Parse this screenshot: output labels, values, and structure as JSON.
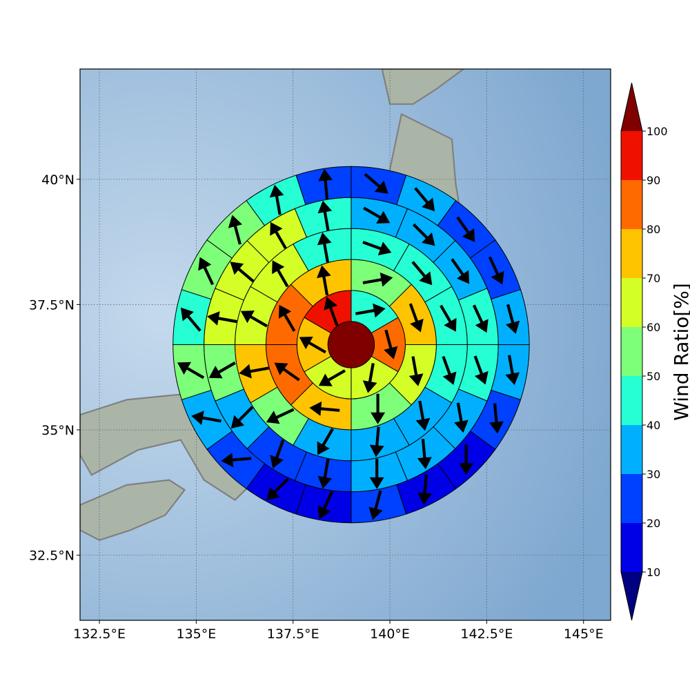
{
  "chart_data": {
    "type": "heatmap",
    "subtype": "polar-sector-map",
    "projection": "cylindrical",
    "lon_range": [
      132.0,
      145.7
    ],
    "lat_range": [
      31.2,
      42.2
    ],
    "xticks": [
      132.5,
      135,
      137.5,
      140,
      142.5,
      145
    ],
    "xtick_labels": [
      "132.5°E",
      "135°E",
      "137.5°E",
      "140°E",
      "142.5°E",
      "145°E"
    ],
    "yticks": [
      32.5,
      35,
      37.5,
      40
    ],
    "ytick_labels": [
      "32.5°N",
      "35°N",
      "37.5°N",
      "40°N"
    ],
    "grid": true,
    "center": {
      "lon": 139.0,
      "lat": 36.7
    },
    "center_value": 100,
    "rings": [
      {
        "inner_deg": 0.6,
        "outer_deg": 1.4,
        "n_sectors": 6,
        "values": [
          42,
          82,
          65,
          62,
          73,
          90
        ],
        "arrow_dir_deg": [
          80,
          165,
          190,
          240,
          300,
          340
        ]
      },
      {
        "inner_deg": 1.4,
        "outer_deg": 2.2,
        "n_sectors": 8,
        "values": [
          52,
          72,
          65,
          52,
          75,
          82,
          82,
          73
        ],
        "arrow_dir_deg": [
          80,
          160,
          170,
          180,
          275,
          305,
          330,
          350
        ]
      },
      {
        "inner_deg": 2.2,
        "outer_deg": 3.0,
        "n_sectors": 12,
        "values": [
          42,
          45,
          42,
          42,
          32,
          38,
          32,
          55,
          75,
          65,
          62,
          45
        ],
        "arrow_dir_deg": [
          110,
          140,
          150,
          160,
          170,
          185,
          210,
          245,
          260,
          300,
          330,
          350
        ]
      },
      {
        "inner_deg": 3.0,
        "outer_deg": 3.8,
        "n_sectors": 16,
        "values": [
          38,
          35,
          35,
          42,
          45,
          32,
          35,
          32,
          24,
          25,
          32,
          55,
          62,
          62,
          62,
          45
        ],
        "arrow_dir_deg": [
          120,
          135,
          145,
          155,
          160,
          170,
          175,
          180,
          190,
          200,
          225,
          240,
          280,
          310,
          330,
          350
        ]
      },
      {
        "inner_deg": 3.8,
        "outer_deg": 4.6,
        "n_sectors": 20,
        "values": [
          22,
          32,
          22,
          25,
          35,
          35,
          25,
          14,
          14,
          22,
          18,
          14,
          24,
          32,
          55,
          45,
          52,
          55,
          42,
          22
        ],
        "arrow_dir_deg": [
          130,
          140,
          145,
          155,
          165,
          170,
          175,
          180,
          185,
          195,
          205,
          225,
          265,
          280,
          300,
          320,
          335,
          345,
          350,
          355
        ]
      }
    ]
  },
  "colorbar": {
    "label": "Wind Ratio[%]",
    "ticks": [
      10,
      20,
      30,
      40,
      50,
      60,
      70,
      80,
      90,
      100
    ],
    "tick_labels": [
      "10",
      "20",
      "30",
      "40",
      "50",
      "60",
      "70",
      "80",
      "90",
      "100"
    ],
    "bins": [
      {
        "from": 10,
        "to": 20,
        "color": "#0000e6"
      },
      {
        "from": 20,
        "to": 30,
        "color": "#0040ff"
      },
      {
        "from": 30,
        "to": 40,
        "color": "#00b0ff"
      },
      {
        "from": 40,
        "to": 50,
        "color": "#26ffd4"
      },
      {
        "from": 50,
        "to": 60,
        "color": "#7dff7a"
      },
      {
        "from": 60,
        "to": 70,
        "color": "#d4ff26"
      },
      {
        "from": 70,
        "to": 80,
        "color": "#ffc400"
      },
      {
        "from": 80,
        "to": 90,
        "color": "#ff6a00"
      },
      {
        "from": 90,
        "to": 100,
        "color": "#f01000"
      }
    ],
    "under_color": "#000080",
    "over_color": "#800000"
  },
  "colors": {
    "ocean": "#7fa8d0",
    "ocean_light": "#c4d9ec",
    "land": "#aab5a8",
    "coastline": "#808080",
    "grid": "#555555"
  }
}
